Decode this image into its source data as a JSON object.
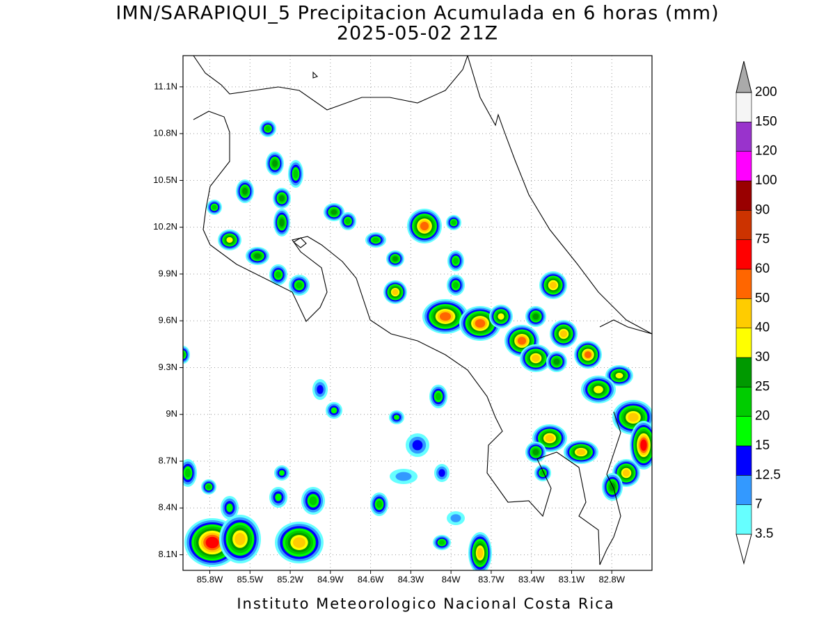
{
  "title": "IMN/SARAPIQUI_5 Precipitacion Acumulada en 6 horas (mm)",
  "subtitle": "2025-05-02 21Z",
  "credit": "Instituto Meteorologico Nacional Costa Rica",
  "map": {
    "xlim": [
      -86.0,
      -82.5
    ],
    "ylim": [
      8.0,
      11.3
    ],
    "grid": true,
    "xticks": [
      {
        "value": -85.8,
        "label": "85.8W"
      },
      {
        "value": -85.5,
        "label": "85.5W"
      },
      {
        "value": -85.2,
        "label": "85.2W"
      },
      {
        "value": -84.9,
        "label": "84.9W"
      },
      {
        "value": -84.6,
        "label": "84.6W"
      },
      {
        "value": -84.3,
        "label": "84.3W"
      },
      {
        "value": -84.0,
        "label": "84W"
      },
      {
        "value": -83.7,
        "label": "83.7W"
      },
      {
        "value": -83.4,
        "label": "83.4W"
      },
      {
        "value": -83.1,
        "label": "83.1W"
      },
      {
        "value": -82.8,
        "label": "82.8W"
      }
    ],
    "yticks": [
      {
        "value": 8.1,
        "label": "8.1N"
      },
      {
        "value": 8.4,
        "label": "8.4N"
      },
      {
        "value": 8.7,
        "label": "8.7N"
      },
      {
        "value": 9.0,
        "label": "9N"
      },
      {
        "value": 9.3,
        "label": "9.3N"
      },
      {
        "value": 9.6,
        "label": "9.6N"
      },
      {
        "value": 9.9,
        "label": "9.9N"
      },
      {
        "value": 10.2,
        "label": "10.2N"
      },
      {
        "value": 10.5,
        "label": "10.5N"
      },
      {
        "value": 10.8,
        "label": "10.8N"
      },
      {
        "value": 11.1,
        "label": "11.1N"
      }
    ]
  },
  "colorbar": {
    "levels": [
      3.5,
      7,
      12.5,
      15,
      20,
      25,
      30,
      40,
      50,
      60,
      75,
      90,
      100,
      120,
      150,
      200
    ],
    "colors": [
      "#ffffff",
      "#66ffff",
      "#3399ff",
      "#0000ff",
      "#00ff00",
      "#00cc00",
      "#009900",
      "#ffff00",
      "#ffcc00",
      "#ff6600",
      "#ff0000",
      "#cc3300",
      "#990000",
      "#ff00ff",
      "#9933cc",
      "#f5f5f5",
      "#aaaaaa"
    ]
  }
}
